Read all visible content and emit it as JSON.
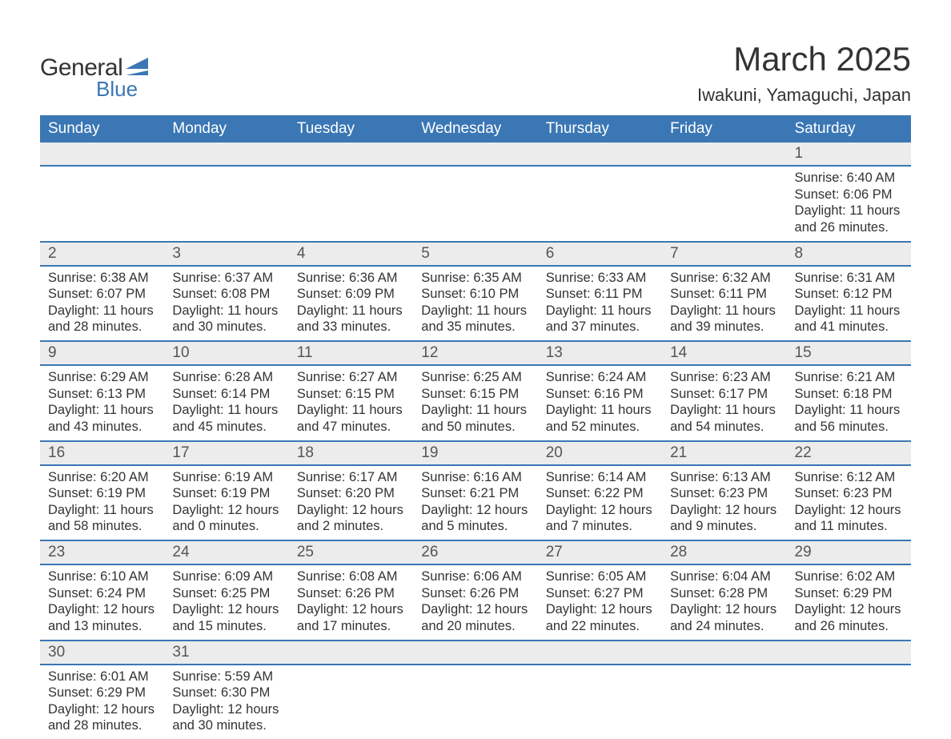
{
  "logo": {
    "text1": "General",
    "text2": "Blue"
  },
  "title": "March 2025",
  "location": "Iwakuni, Yamaguchi, Japan",
  "colors": {
    "header_bg": "#3b77b5",
    "header_text": "#ffffff",
    "daynum_bg": "#ececec",
    "text": "#333333",
    "row_border": "#3b77b5",
    "page_bg": "#ffffff"
  },
  "typography": {
    "title_fontsize": 42,
    "location_fontsize": 22,
    "header_fontsize": 19,
    "daynum_fontsize": 19,
    "details_fontsize": 16.5,
    "font_family": "Arial"
  },
  "weekdays": [
    "Sunday",
    "Monday",
    "Tuesday",
    "Wednesday",
    "Thursday",
    "Friday",
    "Saturday"
  ],
  "weeks": [
    [
      null,
      null,
      null,
      null,
      null,
      null,
      {
        "n": "1",
        "sr": "Sunrise: 6:40 AM",
        "ss": "Sunset: 6:06 PM",
        "d1": "Daylight: 11 hours",
        "d2": "and 26 minutes."
      }
    ],
    [
      {
        "n": "2",
        "sr": "Sunrise: 6:38 AM",
        "ss": "Sunset: 6:07 PM",
        "d1": "Daylight: 11 hours",
        "d2": "and 28 minutes."
      },
      {
        "n": "3",
        "sr": "Sunrise: 6:37 AM",
        "ss": "Sunset: 6:08 PM",
        "d1": "Daylight: 11 hours",
        "d2": "and 30 minutes."
      },
      {
        "n": "4",
        "sr": "Sunrise: 6:36 AM",
        "ss": "Sunset: 6:09 PM",
        "d1": "Daylight: 11 hours",
        "d2": "and 33 minutes."
      },
      {
        "n": "5",
        "sr": "Sunrise: 6:35 AM",
        "ss": "Sunset: 6:10 PM",
        "d1": "Daylight: 11 hours",
        "d2": "and 35 minutes."
      },
      {
        "n": "6",
        "sr": "Sunrise: 6:33 AM",
        "ss": "Sunset: 6:11 PM",
        "d1": "Daylight: 11 hours",
        "d2": "and 37 minutes."
      },
      {
        "n": "7",
        "sr": "Sunrise: 6:32 AM",
        "ss": "Sunset: 6:11 PM",
        "d1": "Daylight: 11 hours",
        "d2": "and 39 minutes."
      },
      {
        "n": "8",
        "sr": "Sunrise: 6:31 AM",
        "ss": "Sunset: 6:12 PM",
        "d1": "Daylight: 11 hours",
        "d2": "and 41 minutes."
      }
    ],
    [
      {
        "n": "9",
        "sr": "Sunrise: 6:29 AM",
        "ss": "Sunset: 6:13 PM",
        "d1": "Daylight: 11 hours",
        "d2": "and 43 minutes."
      },
      {
        "n": "10",
        "sr": "Sunrise: 6:28 AM",
        "ss": "Sunset: 6:14 PM",
        "d1": "Daylight: 11 hours",
        "d2": "and 45 minutes."
      },
      {
        "n": "11",
        "sr": "Sunrise: 6:27 AM",
        "ss": "Sunset: 6:15 PM",
        "d1": "Daylight: 11 hours",
        "d2": "and 47 minutes."
      },
      {
        "n": "12",
        "sr": "Sunrise: 6:25 AM",
        "ss": "Sunset: 6:15 PM",
        "d1": "Daylight: 11 hours",
        "d2": "and 50 minutes."
      },
      {
        "n": "13",
        "sr": "Sunrise: 6:24 AM",
        "ss": "Sunset: 6:16 PM",
        "d1": "Daylight: 11 hours",
        "d2": "and 52 minutes."
      },
      {
        "n": "14",
        "sr": "Sunrise: 6:23 AM",
        "ss": "Sunset: 6:17 PM",
        "d1": "Daylight: 11 hours",
        "d2": "and 54 minutes."
      },
      {
        "n": "15",
        "sr": "Sunrise: 6:21 AM",
        "ss": "Sunset: 6:18 PM",
        "d1": "Daylight: 11 hours",
        "d2": "and 56 minutes."
      }
    ],
    [
      {
        "n": "16",
        "sr": "Sunrise: 6:20 AM",
        "ss": "Sunset: 6:19 PM",
        "d1": "Daylight: 11 hours",
        "d2": "and 58 minutes."
      },
      {
        "n": "17",
        "sr": "Sunrise: 6:19 AM",
        "ss": "Sunset: 6:19 PM",
        "d1": "Daylight: 12 hours",
        "d2": "and 0 minutes."
      },
      {
        "n": "18",
        "sr": "Sunrise: 6:17 AM",
        "ss": "Sunset: 6:20 PM",
        "d1": "Daylight: 12 hours",
        "d2": "and 2 minutes."
      },
      {
        "n": "19",
        "sr": "Sunrise: 6:16 AM",
        "ss": "Sunset: 6:21 PM",
        "d1": "Daylight: 12 hours",
        "d2": "and 5 minutes."
      },
      {
        "n": "20",
        "sr": "Sunrise: 6:14 AM",
        "ss": "Sunset: 6:22 PM",
        "d1": "Daylight: 12 hours",
        "d2": "and 7 minutes."
      },
      {
        "n": "21",
        "sr": "Sunrise: 6:13 AM",
        "ss": "Sunset: 6:23 PM",
        "d1": "Daylight: 12 hours",
        "d2": "and 9 minutes."
      },
      {
        "n": "22",
        "sr": "Sunrise: 6:12 AM",
        "ss": "Sunset: 6:23 PM",
        "d1": "Daylight: 12 hours",
        "d2": "and 11 minutes."
      }
    ],
    [
      {
        "n": "23",
        "sr": "Sunrise: 6:10 AM",
        "ss": "Sunset: 6:24 PM",
        "d1": "Daylight: 12 hours",
        "d2": "and 13 minutes."
      },
      {
        "n": "24",
        "sr": "Sunrise: 6:09 AM",
        "ss": "Sunset: 6:25 PM",
        "d1": "Daylight: 12 hours",
        "d2": "and 15 minutes."
      },
      {
        "n": "25",
        "sr": "Sunrise: 6:08 AM",
        "ss": "Sunset: 6:26 PM",
        "d1": "Daylight: 12 hours",
        "d2": "and 17 minutes."
      },
      {
        "n": "26",
        "sr": "Sunrise: 6:06 AM",
        "ss": "Sunset: 6:26 PM",
        "d1": "Daylight: 12 hours",
        "d2": "and 20 minutes."
      },
      {
        "n": "27",
        "sr": "Sunrise: 6:05 AM",
        "ss": "Sunset: 6:27 PM",
        "d1": "Daylight: 12 hours",
        "d2": "and 22 minutes."
      },
      {
        "n": "28",
        "sr": "Sunrise: 6:04 AM",
        "ss": "Sunset: 6:28 PM",
        "d1": "Daylight: 12 hours",
        "d2": "and 24 minutes."
      },
      {
        "n": "29",
        "sr": "Sunrise: 6:02 AM",
        "ss": "Sunset: 6:29 PM",
        "d1": "Daylight: 12 hours",
        "d2": "and 26 minutes."
      }
    ],
    [
      {
        "n": "30",
        "sr": "Sunrise: 6:01 AM",
        "ss": "Sunset: 6:29 PM",
        "d1": "Daylight: 12 hours",
        "d2": "and 28 minutes."
      },
      {
        "n": "31",
        "sr": "Sunrise: 5:59 AM",
        "ss": "Sunset: 6:30 PM",
        "d1": "Daylight: 12 hours",
        "d2": "and 30 minutes."
      },
      null,
      null,
      null,
      null,
      null
    ]
  ]
}
